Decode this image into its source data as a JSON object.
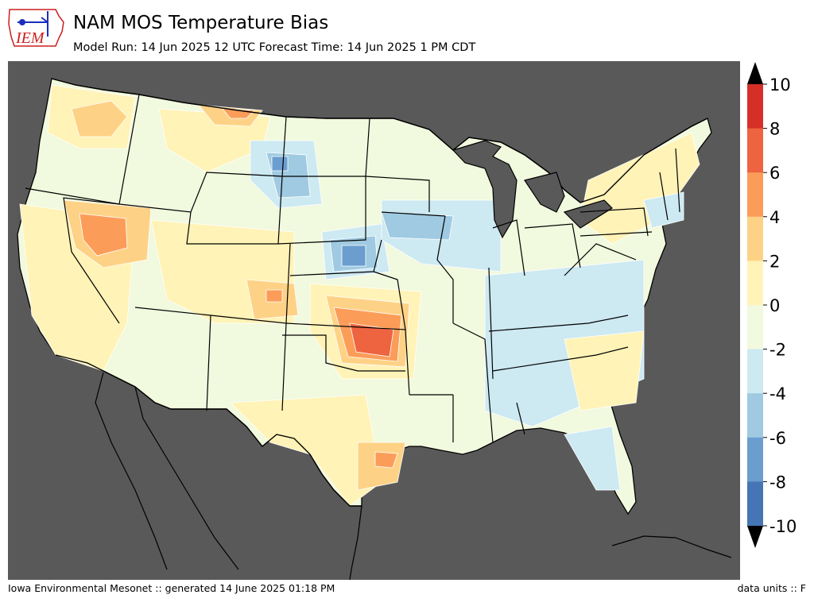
{
  "logo": {
    "text": "IEM",
    "color": "#cc1f1f",
    "accent": "#1c2fbf"
  },
  "title": "NAM MOS Temperature Bias",
  "subtitle": "Model Run: 14 Jun 2025 12 UTC Forecast Time: 14 Jun 2025 1 PM CDT",
  "footer": {
    "left": "Iowa Environmental Mesonet :: generated 14 June 2025 01:18 PM",
    "right": "data units :: F"
  },
  "map": {
    "background_color": "#595959",
    "land_base_color": "#f1f9de",
    "boundary_color": "#000000",
    "contour_line_color": "#ffffff"
  },
  "colorbar": {
    "tick_labels": [
      "10",
      "8",
      "6",
      "4",
      "2",
      "0",
      "-2",
      "-4",
      "-6",
      "-8",
      "-10"
    ],
    "levels": [
      -10,
      -8,
      -6,
      -4,
      -2,
      0,
      2,
      4,
      6,
      8,
      10
    ],
    "colors": [
      "#4575b4",
      "#6b9ecf",
      "#9fcae1",
      "#cde9f2",
      "#f1f9de",
      "#fff3b7",
      "#fed286",
      "#fb9d59",
      "#ee6340",
      "#d62f27"
    ],
    "extend_below_color": "#000000",
    "extend_above_color": "#000000"
  }
}
